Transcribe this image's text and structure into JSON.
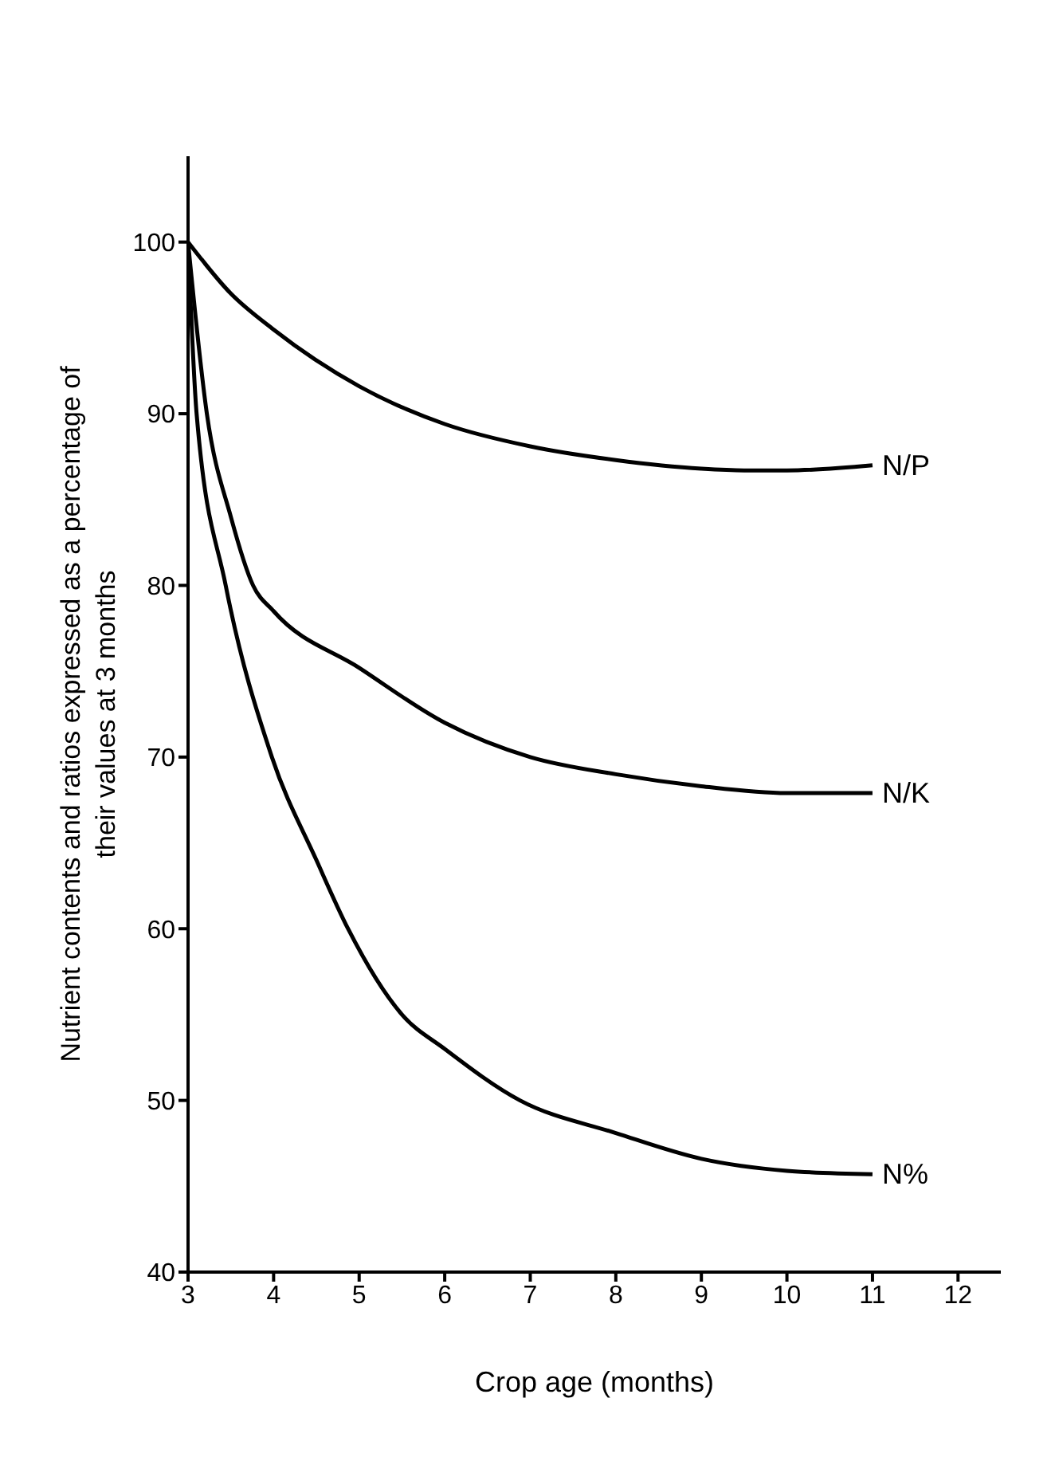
{
  "chart_data": {
    "type": "line",
    "xlabel": "Crop age (months)",
    "ylabel": "Nutrient contents and ratios expressed as a percentage of their values at 3 months",
    "xlim": [
      3,
      12.5
    ],
    "xticks": [
      3,
      4,
      5,
      6,
      7,
      8,
      9,
      10,
      11,
      12
    ],
    "ylim": [
      40,
      105
    ],
    "yticks": [
      40,
      50,
      60,
      70,
      80,
      90,
      100
    ],
    "grid": false,
    "legend": false,
    "marker": "none",
    "line_style": "solid",
    "series": [
      {
        "name": "N/P",
        "color": "#000000",
        "x": [
          3,
          3.5,
          4,
          5,
          6,
          7,
          8,
          9,
          9.5,
          10,
          11
        ],
        "values": [
          100,
          97,
          94.9,
          91.6,
          89.4,
          88.1,
          87.3,
          86.8,
          86.7,
          86.7,
          87
        ]
      },
      {
        "name": "N/K",
        "color": "#000000",
        "x": [
          3,
          3.22,
          3.5,
          3.76,
          4,
          5,
          6,
          7,
          8,
          9,
          10,
          11
        ],
        "values": [
          100,
          90,
          84,
          80,
          78.5,
          75.2,
          72,
          70,
          69,
          68.3,
          67.9,
          67.9
        ]
      },
      {
        "name": "N%",
        "color": "#000000",
        "x": [
          3,
          3.1,
          3.44,
          3.98,
          4.5,
          4.87,
          5.5,
          6,
          6.88,
          8,
          9,
          10,
          11
        ],
        "values": [
          100,
          90,
          80,
          70,
          64,
          60,
          55,
          53,
          50,
          48.1,
          46.6,
          45.9,
          45.7
        ]
      }
    ]
  }
}
